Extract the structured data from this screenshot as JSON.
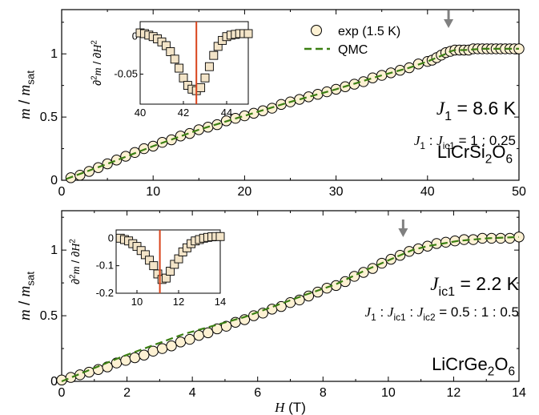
{
  "chart_data": [
    {
      "type": "scatter",
      "xlim": [
        0,
        50
      ],
      "ylim": [
        0,
        1.35
      ],
      "xticks": [
        "0",
        "10",
        "20",
        "30",
        "40",
        "50"
      ],
      "yticks": [
        "0",
        "0.5",
        "1"
      ],
      "yticks_v": [
        0,
        0.5,
        1
      ],
      "ylabel_parts": [
        "m",
        " / ",
        "m",
        "sat"
      ],
      "legend": {
        "exp": "exp (1.5 K)",
        "qmc": "QMC",
        "position": "top-right"
      },
      "compound_parts": [
        "LiCrSi",
        "2",
        "O",
        "6"
      ],
      "annotations": [
        {
          "id": "J1",
          "parts": [
            "J",
            "1",
            " = 8.6 K"
          ]
        },
        {
          "id": "ratio",
          "parts": [
            "J",
            "1",
            " : ",
            "J",
            "ic1",
            " = 1 : 0.25"
          ]
        }
      ],
      "arrow_x": 42.3,
      "series": [
        {
          "name": "exp (1.5 K)",
          "x": [
            1,
            2,
            3,
            4,
            5,
            6,
            7,
            8,
            9,
            10,
            11,
            12,
            13,
            14,
            15,
            16,
            17,
            18,
            19,
            20,
            21,
            22,
            23,
            24,
            25,
            26,
            27,
            28,
            29,
            30,
            31,
            32,
            33,
            34,
            35,
            36,
            37,
            38,
            39,
            40,
            40.5,
            41,
            41.5,
            42,
            42.5,
            43,
            43.5,
            44,
            44.5,
            45,
            45.5,
            46,
            46.5,
            47,
            47.5,
            48,
            48.5,
            49,
            49.5,
            50
          ],
          "y": [
            0.02,
            0.04,
            0.07,
            0.1,
            0.13,
            0.16,
            0.19,
            0.22,
            0.25,
            0.27,
            0.3,
            0.32,
            0.35,
            0.37,
            0.4,
            0.42,
            0.44,
            0.47,
            0.49,
            0.51,
            0.53,
            0.55,
            0.57,
            0.6,
            0.62,
            0.64,
            0.66,
            0.68,
            0.7,
            0.72,
            0.74,
            0.76,
            0.78,
            0.81,
            0.83,
            0.85,
            0.87,
            0.89,
            0.92,
            0.94,
            0.95,
            0.97,
            0.99,
            1.01,
            1.02,
            1.03,
            1.03,
            1.03,
            1.03,
            1.04,
            1.04,
            1.04,
            1.04,
            1.04,
            1.04,
            1.04,
            1.04,
            1.04,
            1.04,
            1.04
          ]
        },
        {
          "name": "QMC",
          "x": [
            0.5,
            5,
            10,
            15,
            20,
            25,
            30,
            35,
            38,
            40,
            41,
            42,
            42.5,
            43,
            44,
            46,
            50
          ],
          "y": [
            0.01,
            0.13,
            0.27,
            0.4,
            0.51,
            0.62,
            0.72,
            0.83,
            0.89,
            0.94,
            0.97,
            1.0,
            1.02,
            1.03,
            1.03,
            1.04,
            1.04
          ]
        }
      ],
      "inset": {
        "xlim": [
          40,
          45
        ],
        "ylim": [
          -0.09,
          0.02
        ],
        "xticks": [
          "40",
          "42",
          "44"
        ],
        "xticks_v": [
          40,
          42,
          44
        ],
        "yticks": [
          "0",
          "-0.05"
        ],
        "yticks_v": [
          0,
          -0.05
        ],
        "ylabel_parts": [
          "∂",
          "2",
          "m",
          " / ∂",
          "H",
          "2"
        ],
        "vline_x": 42.6,
        "x": [
          40,
          40.2,
          40.4,
          40.6,
          40.8,
          41,
          41.2,
          41.4,
          41.6,
          41.8,
          42,
          42.2,
          42.4,
          42.6,
          42.8,
          43,
          43.2,
          43.4,
          43.6,
          43.8,
          44,
          44.2,
          44.4,
          44.6,
          44.8,
          45
        ],
        "y": [
          0.005,
          0.004,
          0.002,
          0.0,
          -0.003,
          -0.007,
          -0.012,
          -0.02,
          -0.03,
          -0.042,
          -0.055,
          -0.065,
          -0.07,
          -0.072,
          -0.068,
          -0.055,
          -0.04,
          -0.025,
          -0.013,
          -0.005,
          0.0,
          0.002,
          0.003,
          0.004,
          0.004,
          0.004
        ]
      }
    },
    {
      "type": "scatter",
      "xlim": [
        0,
        15
      ],
      "ylim": [
        0,
        1.3
      ],
      "xticks": [
        "0",
        "2",
        "4",
        "6",
        "8",
        "10",
        "12",
        "14"
      ],
      "yticks": [
        "0",
        "0.5",
        "1"
      ],
      "yticks_v": [
        0,
        0.5,
        1
      ],
      "xlabel_parts": [
        "H",
        " (T)"
      ],
      "ylabel_parts": [
        "m",
        " / ",
        "m",
        "sat"
      ],
      "compound_parts": [
        "LiCrGe",
        "2",
        "O",
        "6"
      ],
      "annotations": [
        {
          "id": "Jic1",
          "parts": [
            "J",
            "ic1",
            " = 2.2 K"
          ]
        },
        {
          "id": "ratio",
          "parts": [
            "J",
            "1",
            " : ",
            "J",
            "ic1",
            " : ",
            "J",
            "ic2",
            " = 0.5 : 1 : 0.5"
          ]
        }
      ],
      "arrow_x": 11.2,
      "series": [
        {
          "name": "exp (1.5 K)",
          "x": [
            0,
            0.3,
            0.6,
            0.9,
            1.2,
            1.5,
            1.8,
            2.1,
            2.4,
            2.7,
            3,
            3.3,
            3.6,
            3.9,
            4.2,
            4.5,
            4.8,
            5.1,
            5.4,
            5.7,
            6,
            6.3,
            6.6,
            6.9,
            7.2,
            7.5,
            7.8,
            8.1,
            8.4,
            8.7,
            9,
            9.3,
            9.6,
            9.9,
            10.2,
            10.5,
            10.8,
            11.1,
            11.4,
            11.7,
            12,
            12.3,
            12.6,
            12.9,
            13.2,
            13.5,
            13.8,
            14.1,
            14.4,
            14.7,
            15
          ],
          "y": [
            0.01,
            0.03,
            0.05,
            0.07,
            0.09,
            0.11,
            0.14,
            0.16,
            0.18,
            0.2,
            0.23,
            0.25,
            0.27,
            0.3,
            0.32,
            0.35,
            0.37,
            0.4,
            0.42,
            0.45,
            0.47,
            0.5,
            0.52,
            0.55,
            0.57,
            0.6,
            0.62,
            0.65,
            0.68,
            0.71,
            0.73,
            0.76,
            0.8,
            0.83,
            0.86,
            0.9,
            0.93,
            0.96,
            0.99,
            1.01,
            1.03,
            1.05,
            1.06,
            1.07,
            1.08,
            1.08,
            1.09,
            1.09,
            1.09,
            1.09,
            1.1
          ]
        },
        {
          "name": "QMC",
          "x": [
            0,
            2,
            4,
            6,
            8,
            9,
            10,
            10.5,
            11,
            11.5,
            12,
            12.5,
            13,
            13.5,
            14,
            15
          ],
          "y": [
            0.0,
            0.19,
            0.36,
            0.49,
            0.66,
            0.74,
            0.85,
            0.9,
            0.95,
            1.0,
            1.03,
            1.05,
            1.07,
            1.08,
            1.09,
            1.1
          ]
        }
      ],
      "inset": {
        "xlim": [
          9,
          14
        ],
        "ylim": [
          -0.2,
          0.03
        ],
        "xticks": [
          "10",
          "12",
          "14"
        ],
        "xticks_v": [
          10,
          12,
          14
        ],
        "yticks": [
          "0",
          "-0.1",
          "-0.2"
        ],
        "yticks_v": [
          0,
          -0.1,
          -0.2
        ],
        "ylabel_parts": [
          "∂",
          "2",
          "m",
          " / ∂",
          "H",
          "2"
        ],
        "vline_x": 11.1,
        "x": [
          9.2,
          9.4,
          9.6,
          9.8,
          10,
          10.2,
          10.4,
          10.6,
          10.8,
          11,
          11.2,
          11.4,
          11.6,
          11.8,
          12,
          12.2,
          12.4,
          12.6,
          12.8,
          13,
          13.2,
          13.4,
          13.6,
          13.8,
          14
        ],
        "y": [
          0.0,
          -0.005,
          -0.01,
          -0.02,
          -0.03,
          -0.045,
          -0.06,
          -0.08,
          -0.1,
          -0.13,
          -0.15,
          -0.145,
          -0.12,
          -0.095,
          -0.075,
          -0.05,
          -0.035,
          -0.02,
          -0.01,
          -0.005,
          0.0,
          0.003,
          0.005,
          0.006,
          0.006
        ]
      }
    }
  ],
  "colors": {
    "marker_fill": "#fdf1d3",
    "qmc": "#3b7f12",
    "vline": "#d9431b",
    "arrow": "#808080",
    "inset_marker": "#f3e4c8"
  }
}
